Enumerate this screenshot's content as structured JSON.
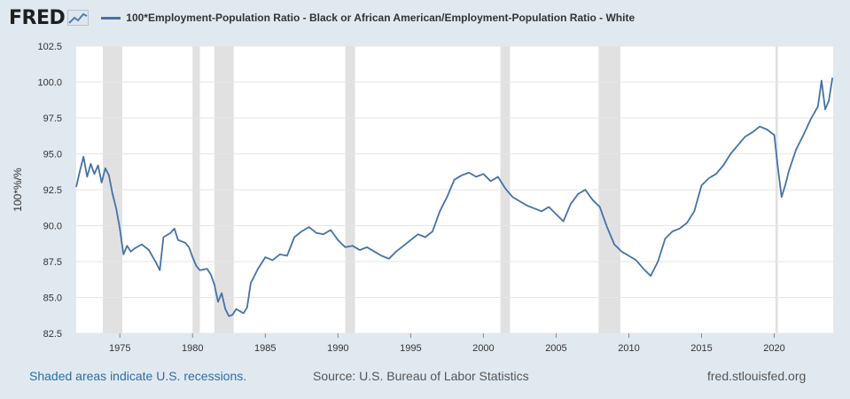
{
  "logo": {
    "text": "FRED"
  },
  "colors": {
    "line": "#4572a7",
    "recession": "#e1e1e1",
    "grid": "#e6e6e6",
    "background": "#e1e9f0"
  },
  "chart_data": {
    "type": "line",
    "series": [
      {
        "name": "100*Employment-Population Ratio - Black or African American/Employment-Population Ratio - White",
        "x": [
          1972.0,
          1972.25,
          1972.5,
          1972.75,
          1973.0,
          1973.25,
          1973.5,
          1973.75,
          1974.0,
          1974.25,
          1974.5,
          1974.75,
          1975.0,
          1975.25,
          1975.5,
          1975.75,
          1976.0,
          1976.5,
          1977.0,
          1977.5,
          1977.75,
          1978.0,
          1978.5,
          1978.75,
          1979.0,
          1979.5,
          1979.75,
          1980.0,
          1980.25,
          1980.5,
          1981.0,
          1981.25,
          1981.5,
          1981.75,
          1982.0,
          1982.25,
          1982.5,
          1982.75,
          1983.0,
          1983.5,
          1983.75,
          1984.0,
          1984.5,
          1985.0,
          1985.5,
          1986.0,
          1986.5,
          1987.0,
          1987.5,
          1988.0,
          1988.5,
          1989.0,
          1989.5,
          1990.0,
          1990.5,
          1991.0,
          1991.5,
          1992.0,
          1992.5,
          1993.0,
          1993.5,
          1994.0,
          1994.5,
          1995.0,
          1995.5,
          1996.0,
          1996.5,
          1997.0,
          1997.5,
          1998.0,
          1998.5,
          1999.0,
          1999.5,
          2000.0,
          2000.5,
          2001.0,
          2001.5,
          2002.0,
          2002.5,
          2003.0,
          2003.5,
          2004.0,
          2004.5,
          2005.0,
          2005.5,
          2006.0,
          2006.5,
          2007.0,
          2007.5,
          2008.0,
          2008.5,
          2009.0,
          2009.5,
          2010.0,
          2010.5,
          2011.0,
          2011.5,
          2012.0,
          2012.5,
          2013.0,
          2013.5,
          2014.0,
          2014.5,
          2015.0,
          2015.5,
          2016.0,
          2016.5,
          2017.0,
          2017.5,
          2018.0,
          2018.5,
          2019.0,
          2019.5,
          2020.0,
          2020.25,
          2020.5,
          2020.75,
          2021.0,
          2021.5,
          2022.0,
          2022.5,
          2023.0,
          2023.25,
          2023.5,
          2023.75,
          2024.0
        ],
        "values": [
          92.7,
          93.8,
          94.8,
          93.4,
          94.3,
          93.6,
          94.2,
          93.0,
          94.0,
          93.5,
          92.2,
          91.2,
          89.8,
          88.0,
          88.6,
          88.2,
          88.4,
          88.7,
          88.3,
          87.4,
          86.9,
          89.2,
          89.5,
          89.8,
          89.0,
          88.8,
          88.5,
          87.8,
          87.2,
          86.9,
          87.0,
          86.6,
          85.9,
          84.7,
          85.3,
          84.2,
          83.7,
          83.8,
          84.2,
          83.9,
          84.3,
          86.0,
          87.0,
          87.8,
          87.6,
          88.0,
          87.9,
          89.2,
          89.6,
          89.9,
          89.5,
          89.4,
          89.7,
          89.0,
          88.5,
          88.6,
          88.3,
          88.5,
          88.2,
          87.9,
          87.7,
          88.2,
          88.6,
          89.0,
          89.4,
          89.2,
          89.6,
          91.0,
          92.0,
          93.2,
          93.5,
          93.7,
          93.4,
          93.6,
          93.1,
          93.4,
          92.6,
          92.0,
          91.7,
          91.4,
          91.2,
          91.0,
          91.3,
          90.8,
          90.3,
          91.5,
          92.2,
          92.5,
          91.8,
          91.3,
          89.9,
          88.7,
          88.2,
          87.9,
          87.6,
          87.0,
          86.5,
          87.5,
          89.1,
          89.6,
          89.8,
          90.2,
          91.0,
          92.8,
          93.3,
          93.6,
          94.2,
          95.0,
          95.6,
          96.2,
          96.5,
          96.9,
          96.7,
          96.3,
          94.0,
          92.0,
          92.8,
          93.8,
          95.3,
          96.3,
          97.4,
          98.3,
          100.1,
          98.1,
          98.7,
          100.3
        ]
      }
    ],
    "ylim": [
      82.5,
      102.5
    ],
    "yticks": [
      "82.5",
      "85.0",
      "87.5",
      "90.0",
      "92.5",
      "95.0",
      "97.5",
      "100.0",
      "102.5"
    ],
    "xlim": [
      1972.0,
      2024.05
    ],
    "xticks": [
      "1975",
      "1980",
      "1985",
      "1990",
      "1995",
      "2000",
      "2005",
      "2010",
      "2015",
      "2020"
    ],
    "ylabel": "100*%/%",
    "recessions": [
      [
        1973.83,
        1975.17
      ],
      [
        1980.0,
        1980.5
      ],
      [
        1981.5,
        1982.83
      ],
      [
        1990.5,
        1991.17
      ],
      [
        2001.17,
        2001.83
      ],
      [
        2007.92,
        2009.42
      ],
      [
        2020.08,
        2020.25
      ]
    ],
    "grid": true,
    "legend": "top-left"
  },
  "footer": {
    "recession_note": "Shaded areas indicate U.S. recessions.",
    "source": "Source: U.S. Bureau of Labor Statistics",
    "site": "fred.stlouisfed.org"
  }
}
